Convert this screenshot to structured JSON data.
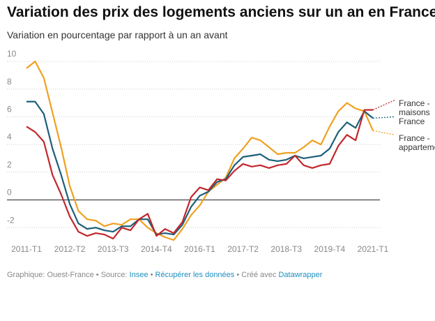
{
  "chart_data": {
    "type": "line",
    "title": "Variation des prix des logements anciens sur un an en France",
    "subtitle": "Variation en pourcentage par rapport à un an avant",
    "categories": [
      "2011-T1",
      null,
      null,
      null,
      null,
      "2012-T2",
      null,
      null,
      null,
      null,
      "2013-T3",
      null,
      null,
      null,
      null,
      "2014-T4",
      null,
      null,
      null,
      null,
      "2016-T1",
      null,
      null,
      null,
      null,
      "2017-T2",
      null,
      null,
      null,
      null,
      "2018-T3",
      null,
      null,
      null,
      null,
      "2019-T4",
      null,
      null,
      null,
      null,
      "2021-T1"
    ],
    "series": [
      {
        "name": "France - appartements",
        "color": "#f0a01e",
        "values": [
          9.5,
          10.0,
          8.8,
          6.3,
          3.8,
          1.0,
          -0.8,
          -1.4,
          -1.5,
          -1.9,
          -1.7,
          -1.8,
          -1.4,
          -1.4,
          -2.0,
          -2.4,
          -2.7,
          -2.9,
          -2.1,
          -1.1,
          -0.4,
          0.6,
          1.1,
          1.6,
          3.0,
          3.7,
          4.5,
          4.3,
          3.8,
          3.3,
          3.4,
          3.4,
          3.8,
          4.3,
          4.0,
          5.3,
          6.4,
          7.0,
          6.6,
          6.4,
          5.0
        ]
      },
      {
        "name": "France",
        "color": "#1b5f78",
        "values": [
          7.1,
          7.1,
          6.2,
          3.7,
          1.8,
          -0.3,
          -1.7,
          -2.1,
          -2.0,
          -2.2,
          -2.3,
          -1.9,
          -1.9,
          -1.4,
          -1.4,
          -2.5,
          -2.4,
          -2.5,
          -1.8,
          -0.5,
          0.3,
          0.6,
          1.3,
          1.5,
          2.5,
          3.1,
          3.2,
          3.3,
          2.9,
          2.8,
          2.9,
          3.2,
          3.0,
          3.1,
          3.2,
          3.7,
          4.9,
          5.6,
          5.2,
          6.4,
          5.9
        ]
      },
      {
        "name": "France - maisons",
        "color": "#c1272d",
        "values": [
          5.3,
          4.9,
          4.2,
          1.8,
          0.4,
          -1.2,
          -2.3,
          -2.6,
          -2.4,
          -2.5,
          -2.8,
          -2.0,
          -2.2,
          -1.4,
          -1.0,
          -2.6,
          -2.1,
          -2.4,
          -1.6,
          0.2,
          0.9,
          0.7,
          1.5,
          1.4,
          2.1,
          2.6,
          2.4,
          2.5,
          2.3,
          2.5,
          2.6,
          3.2,
          2.5,
          2.3,
          2.5,
          2.6,
          3.9,
          4.7,
          4.3,
          6.5,
          6.5
        ]
      }
    ],
    "ylim": [
      -3,
      10
    ],
    "yticks": [
      -2,
      0,
      2,
      4,
      6,
      8,
      10
    ],
    "grid": true,
    "footer": [
      {
        "text": "Graphique: Ouest-France • Source: ",
        "link": false
      },
      {
        "text": "Insee",
        "link": true
      },
      {
        "text": " • ",
        "link": false
      },
      {
        "text": "Récupérer les données",
        "link": true
      },
      {
        "text": " • Créé avec ",
        "link": false
      },
      {
        "text": "Datawrapper",
        "link": true
      }
    ]
  }
}
